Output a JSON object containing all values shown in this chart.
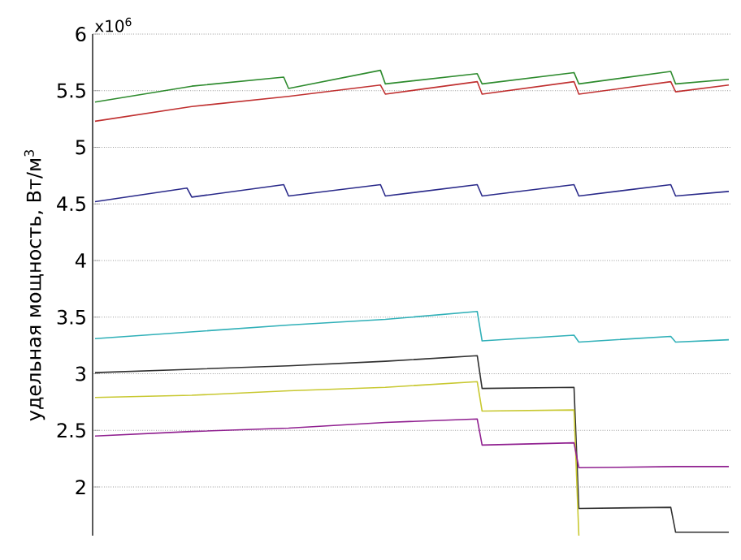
{
  "chart_data": {
    "type": "line",
    "ylabel": "удельная мощность,  Вт/м$^{3}$",
    "annotations": [
      "x10$^{6}$"
    ],
    "categories": [
      null,
      null,
      null,
      null,
      null,
      null,
      null,
      null,
      null,
      null,
      null,
      null,
      null,
      null,
      null,
      null,
      null,
      null,
      null,
      null,
      null,
      null,
      null,
      null,
      null,
      null,
      null,
      null,
      null,
      null,
      null,
      null,
      null,
      null,
      null,
      null,
      null,
      null,
      null,
      null,
      null,
      null,
      null,
      null,
      null,
      null,
      null,
      null,
      null,
      null,
      null,
      null,
      null,
      null,
      null,
      null,
      null,
      null,
      null,
      null,
      null,
      null,
      null,
      null,
      null,
      null,
      null,
      null,
      null,
      null,
      null,
      null,
      null,
      null,
      null,
      null,
      null,
      null,
      null,
      null,
      null,
      null,
      null,
      null,
      null,
      null,
      null,
      null,
      null,
      null,
      null,
      null,
      null,
      null,
      null,
      null,
      null,
      null,
      null,
      null,
      null,
      null,
      null,
      null,
      null,
      null,
      null,
      null,
      null,
      null,
      null,
      null,
      null,
      null,
      null,
      null,
      null,
      null,
      null,
      null,
      null,
      null,
      null,
      null,
      null,
      null,
      null,
      null,
      null,
      null,
      null,
      null
    ],
    "ylim": [
      1.57,
      6
    ],
    "yticks": [
      2,
      2.5,
      3,
      3.5,
      4,
      4.5,
      5,
      5.5,
      6
    ],
    "tick_labels": "y",
    "grid": true,
    "marker": "none",
    "line_style": "solid",
    "series": [
      {
        "color": "#2e8b2e",
        "values": [
          5.4,
          null,
          null,
          null,
          null,
          null,
          null,
          null,
          null,
          null,
          null,
          null,
          null,
          null,
          null,
          null,
          null,
          null,
          null,
          null,
          5.54,
          null,
          null,
          null,
          null,
          null,
          null,
          null,
          null,
          null,
          null,
          null,
          null,
          null,
          null,
          null,
          null,
          null,
          null,
          5.62,
          5.52,
          null,
          null,
          null,
          null,
          null,
          null,
          null,
          null,
          null,
          null,
          null,
          null,
          null,
          null,
          null,
          null,
          null,
          null,
          5.68,
          5.56,
          null,
          null,
          null,
          null,
          null,
          null,
          null,
          null,
          null,
          null,
          null,
          null,
          null,
          null,
          null,
          null,
          null,
          null,
          5.65,
          5.56,
          null,
          null,
          null,
          null,
          null,
          null,
          null,
          null,
          null,
          null,
          null,
          null,
          null,
          null,
          null,
          null,
          null,
          null,
          5.66,
          5.56,
          null,
          null,
          null,
          null,
          null,
          null,
          null,
          null,
          null,
          null,
          null,
          null,
          null,
          null,
          null,
          null,
          null,
          null,
          5.67,
          5.56,
          null,
          null,
          null,
          null,
          null,
          null,
          null,
          null,
          null,
          null,
          5.6
        ]
      },
      {
        "color": "#c03030",
        "values": [
          5.23,
          null,
          null,
          null,
          null,
          null,
          null,
          null,
          null,
          null,
          null,
          null,
          null,
          null,
          null,
          null,
          null,
          null,
          null,
          null,
          5.36,
          null,
          null,
          null,
          null,
          null,
          null,
          null,
          null,
          null,
          null,
          null,
          null,
          null,
          null,
          null,
          null,
          null,
          null,
          null,
          5.45,
          null,
          null,
          null,
          null,
          null,
          null,
          null,
          null,
          null,
          null,
          null,
          null,
          null,
          null,
          null,
          null,
          null,
          null,
          5.55,
          5.47,
          null,
          null,
          null,
          null,
          null,
          null,
          null,
          null,
          null,
          null,
          null,
          null,
          null,
          null,
          null,
          null,
          null,
          null,
          5.58,
          5.47,
          null,
          null,
          null,
          null,
          null,
          null,
          null,
          null,
          null,
          null,
          null,
          null,
          null,
          null,
          null,
          null,
          null,
          null,
          5.58,
          5.47,
          null,
          null,
          null,
          null,
          null,
          null,
          null,
          null,
          null,
          null,
          null,
          null,
          null,
          null,
          null,
          null,
          null,
          null,
          5.58,
          5.49,
          null,
          null,
          null,
          null,
          null,
          null,
          null,
          null,
          null,
          null,
          5.55
        ]
      },
      {
        "color": "#2a2a8a",
        "values": [
          4.52,
          null,
          null,
          null,
          null,
          null,
          null,
          null,
          null,
          null,
          null,
          null,
          null,
          null,
          null,
          null,
          null,
          null,
          null,
          4.64,
          4.56,
          null,
          null,
          null,
          null,
          null,
          null,
          null,
          null,
          null,
          null,
          null,
          null,
          null,
          null,
          null,
          null,
          null,
          null,
          4.67,
          4.57,
          null,
          null,
          null,
          null,
          null,
          null,
          null,
          null,
          null,
          null,
          null,
          null,
          null,
          null,
          null,
          null,
          null,
          null,
          4.67,
          4.57,
          null,
          null,
          null,
          null,
          null,
          null,
          null,
          null,
          null,
          null,
          null,
          null,
          null,
          null,
          null,
          null,
          null,
          null,
          4.67,
          4.57,
          null,
          null,
          null,
          null,
          null,
          null,
          null,
          null,
          null,
          null,
          null,
          null,
          null,
          null,
          null,
          null,
          null,
          null,
          4.67,
          4.57,
          null,
          null,
          null,
          null,
          null,
          null,
          null,
          null,
          null,
          null,
          null,
          null,
          null,
          null,
          null,
          null,
          null,
          null,
          4.67,
          4.57,
          null,
          null,
          null,
          null,
          null,
          null,
          null,
          null,
          null,
          null,
          4.61
        ]
      },
      {
        "color": "#30b0b8",
        "values": [
          3.31,
          null,
          null,
          null,
          null,
          null,
          null,
          null,
          null,
          null,
          null,
          null,
          null,
          null,
          null,
          null,
          null,
          null,
          null,
          null,
          3.37,
          null,
          null,
          null,
          null,
          null,
          null,
          null,
          null,
          null,
          null,
          null,
          null,
          null,
          null,
          null,
          null,
          null,
          null,
          null,
          3.43,
          null,
          null,
          null,
          null,
          null,
          null,
          null,
          null,
          null,
          null,
          null,
          null,
          null,
          null,
          null,
          null,
          null,
          null,
          null,
          3.48,
          null,
          null,
          null,
          null,
          null,
          null,
          null,
          null,
          null,
          null,
          null,
          null,
          null,
          null,
          null,
          null,
          null,
          null,
          3.55,
          3.29,
          null,
          null,
          null,
          null,
          null,
          null,
          null,
          null,
          null,
          null,
          null,
          null,
          null,
          null,
          null,
          null,
          null,
          null,
          3.34,
          3.28,
          null,
          null,
          null,
          null,
          null,
          null,
          null,
          null,
          null,
          null,
          null,
          null,
          null,
          null,
          null,
          null,
          null,
          null,
          3.33,
          3.28,
          null,
          null,
          null,
          null,
          null,
          null,
          null,
          null,
          null,
          null,
          3.3
        ]
      },
      {
        "color": "#303030",
        "values": [
          3.01,
          null,
          null,
          null,
          null,
          null,
          null,
          null,
          null,
          null,
          null,
          null,
          null,
          null,
          null,
          null,
          null,
          null,
          null,
          null,
          3.04,
          null,
          null,
          null,
          null,
          null,
          null,
          null,
          null,
          null,
          null,
          null,
          null,
          null,
          null,
          null,
          null,
          null,
          null,
          null,
          3.07,
          null,
          null,
          null,
          null,
          null,
          null,
          null,
          null,
          null,
          null,
          null,
          null,
          null,
          null,
          null,
          null,
          null,
          null,
          null,
          3.11,
          null,
          null,
          null,
          null,
          null,
          null,
          null,
          null,
          null,
          null,
          null,
          null,
          null,
          null,
          null,
          null,
          null,
          null,
          3.16,
          2.87,
          null,
          null,
          null,
          null,
          null,
          null,
          null,
          null,
          null,
          null,
          null,
          null,
          null,
          null,
          null,
          null,
          null,
          null,
          2.88,
          1.81,
          null,
          null,
          null,
          null,
          null,
          null,
          null,
          null,
          null,
          null,
          null,
          null,
          null,
          null,
          null,
          null,
          null,
          null,
          1.82,
          1.6,
          null,
          null,
          null,
          null,
          null,
          null,
          null,
          null,
          null,
          null,
          1.6
        ]
      },
      {
        "color": "#c8c830",
        "values": [
          2.79,
          null,
          null,
          null,
          null,
          null,
          null,
          null,
          null,
          null,
          null,
          null,
          null,
          null,
          null,
          null,
          null,
          null,
          null,
          null,
          2.81,
          null,
          null,
          null,
          null,
          null,
          null,
          null,
          null,
          null,
          null,
          null,
          null,
          null,
          null,
          null,
          null,
          null,
          null,
          null,
          2.85,
          null,
          null,
          null,
          null,
          null,
          null,
          null,
          null,
          null,
          null,
          null,
          null,
          null,
          null,
          null,
          null,
          null,
          null,
          null,
          2.88,
          null,
          null,
          null,
          null,
          null,
          null,
          null,
          null,
          null,
          null,
          null,
          null,
          null,
          null,
          null,
          null,
          null,
          null,
          2.93,
          2.67,
          null,
          null,
          null,
          null,
          null,
          null,
          null,
          null,
          null,
          null,
          null,
          null,
          null,
          null,
          null,
          null,
          null,
          null,
          2.68,
          1.57,
          null,
          null,
          null,
          null,
          null,
          null,
          null,
          null,
          null,
          null,
          null,
          null,
          null,
          null,
          null,
          null,
          null,
          null,
          null,
          null,
          null,
          null,
          null,
          null,
          null,
          null,
          null,
          null,
          null,
          null,
          null
        ]
      },
      {
        "color": "#902090",
        "values": [
          2.45,
          null,
          null,
          null,
          null,
          null,
          null,
          null,
          null,
          null,
          null,
          null,
          null,
          null,
          null,
          null,
          null,
          null,
          null,
          null,
          2.49,
          null,
          null,
          null,
          null,
          null,
          null,
          null,
          null,
          null,
          null,
          null,
          null,
          null,
          null,
          null,
          null,
          null,
          null,
          null,
          2.52,
          null,
          null,
          null,
          null,
          null,
          null,
          null,
          null,
          null,
          null,
          null,
          null,
          null,
          null,
          null,
          null,
          null,
          null,
          null,
          2.57,
          null,
          null,
          null,
          null,
          null,
          null,
          null,
          null,
          null,
          null,
          null,
          null,
          null,
          null,
          null,
          null,
          null,
          null,
          2.6,
          2.37,
          null,
          null,
          null,
          null,
          null,
          null,
          null,
          null,
          null,
          null,
          null,
          null,
          null,
          null,
          null,
          null,
          null,
          null,
          2.39,
          2.17,
          null,
          null,
          null,
          null,
          null,
          null,
          null,
          null,
          null,
          null,
          null,
          null,
          null,
          null,
          null,
          null,
          null,
          null,
          null,
          2.18,
          null,
          null,
          null,
          null,
          null,
          null,
          null,
          null,
          null,
          null,
          2.18
        ]
      }
    ]
  }
}
